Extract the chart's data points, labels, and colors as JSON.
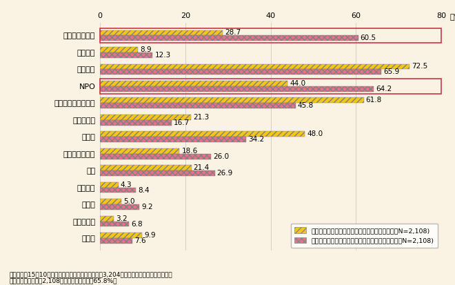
{
  "categories": [
    "市民ひとり一人",
    "個人商店",
    "自治組織",
    "NPO",
    "商工会議所・商工会",
    "青年会議所",
    "婦人会",
    "シニアサークル",
    "学校",
    "学生組織",
    "大企業",
    "大規模商店",
    "その他"
  ],
  "values_current": [
    28.7,
    8.9,
    72.5,
    44.0,
    61.8,
    21.3,
    48.0,
    18.6,
    21.4,
    4.3,
    5.0,
    3.2,
    9.9
  ],
  "values_future": [
    60.5,
    12.3,
    65.9,
    64.2,
    45.8,
    16.7,
    34.2,
    26.0,
    26.9,
    8.4,
    9.2,
    6.8,
    7.6
  ],
  "color_current": "#F5C518",
  "color_future": "#E8708A",
  "hatch_current": "////",
  "hatch_future": "xxxx",
  "bg_color": "#FAF3E3",
  "xlim": [
    0,
    80
  ],
  "xticks": [
    0,
    20,
    40,
    60,
    80
  ],
  "xlabel_unit": "（%）",
  "legend_current": "現在、「地域づくりを担っている人、組織」　（N=2,108)",
  "legend_future": "今後、特に「地域づくりを担うべき人、組織」　（N=2,108)",
  "footnote1": "資料）平成15年10月に国土交通省が実施した、全国3,204市町村に対するアンケート調査",
  "footnote2": "　　　有効回収数は2,108市町村（有効回答率65.8%）",
  "boxed_categories": [
    "市民ひとり一人",
    "NPO"
  ],
  "bar_height": 0.32,
  "label_fontsize": 7.5,
  "tick_fontsize": 8.0
}
